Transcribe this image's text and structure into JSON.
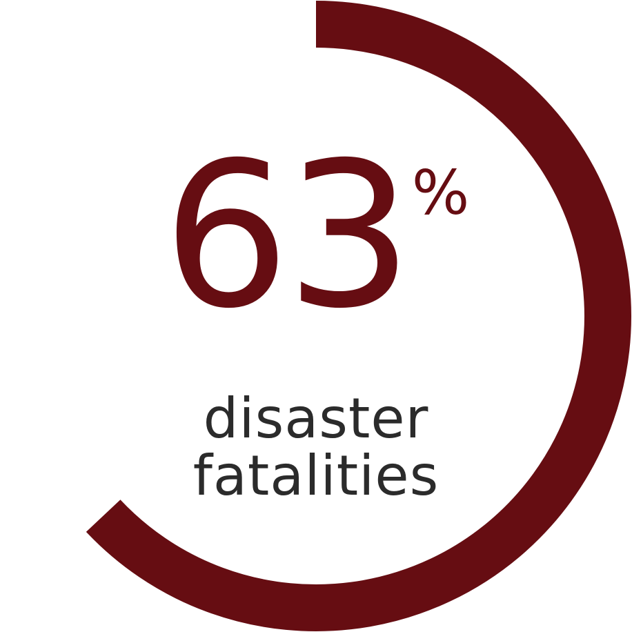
{
  "colors": {
    "accent": "#660d12",
    "text": "#2b2b2b",
    "background": "#ffffff"
  },
  "chart_data": {
    "type": "pie",
    "categories": [
      "disaster fatalities"
    ],
    "values": [
      63
    ],
    "value_label": "63",
    "unit": "%",
    "caption_lines": [
      "disaster",
      "fatalities"
    ],
    "ylim": [
      0,
      100
    ]
  }
}
